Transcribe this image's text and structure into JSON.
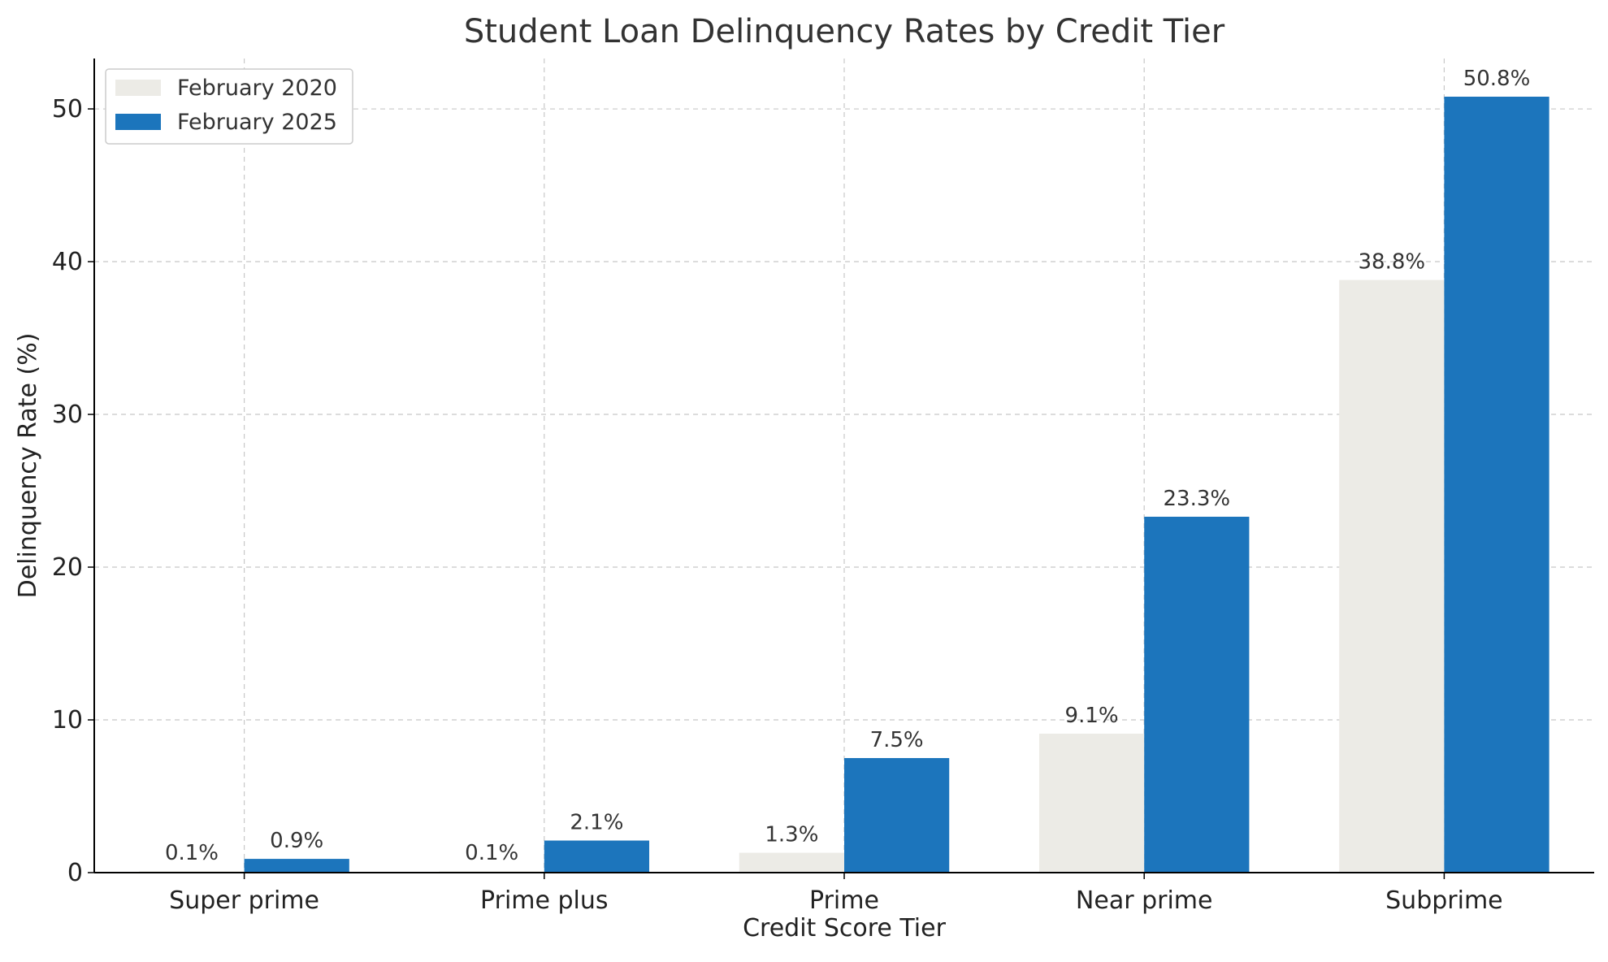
{
  "chart_data": {
    "type": "bar",
    "title": "Student Loan Delinquency Rates by Credit Tier",
    "xlabel": "Credit Score Tier",
    "ylabel": "Delinquency Rate (%)",
    "categories": [
      "Super prime",
      "Prime plus",
      "Prime",
      "Near prime",
      "Subprime"
    ],
    "series": [
      {
        "name": "February 2020",
        "color": "#ecebe6",
        "values": [
          0.1,
          0.1,
          1.3,
          9.1,
          38.8
        ],
        "labels": [
          "0.1%",
          "0.1%",
          "1.3%",
          "9.1%",
          "38.8%"
        ]
      },
      {
        "name": "February 2025",
        "color": "#1c75bc",
        "values": [
          0.9,
          2.1,
          7.5,
          23.3,
          50.8
        ],
        "labels": [
          "0.9%",
          "2.1%",
          "7.5%",
          "23.3%",
          "50.8%"
        ]
      }
    ],
    "yticks": [
      0,
      10,
      20,
      30,
      40,
      50
    ],
    "ylim": [
      0,
      53.3
    ],
    "grid": true,
    "legend_position": "top-left"
  }
}
